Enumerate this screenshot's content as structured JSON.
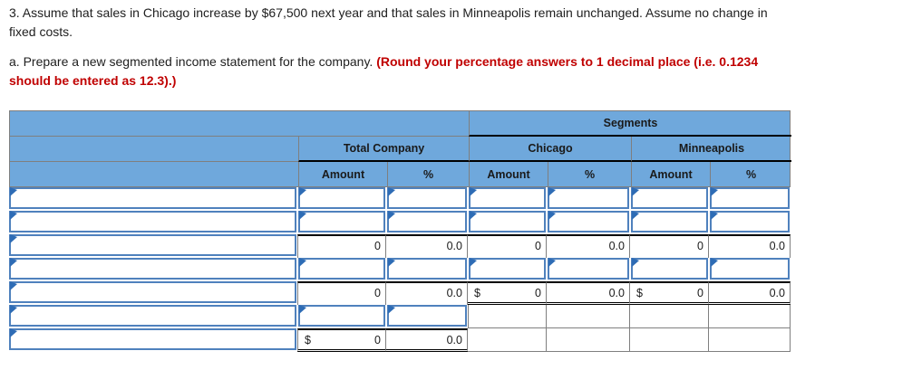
{
  "intro": {
    "line1": "3. Assume that sales in Chicago increase by $67,500 next year and that sales in Minneapolis remain unchanged. Assume no change in",
    "line2": "fixed costs."
  },
  "instruction": {
    "prefix": "a. Prepare a new segmented income statement for the company.",
    "emphasis_line1": "(Round your percentage answers to 1 decimal place (i.e. 0.1234",
    "emphasis_line2": "should be entered as 12.3).)"
  },
  "table": {
    "header": {
      "segments_label": "Segments",
      "total_company_label": "Total Company",
      "chicago_label": "Chicago",
      "minneapolis_label": "Minneapolis",
      "amount_label": "Amount",
      "percent_label": "%"
    },
    "body": {
      "row_3_values": {
        "total_amount": "0",
        "total_pct": "0.0",
        "chicago_amount": "0",
        "chicago_pct": "0.0",
        "minneapolis_amount": "0",
        "minneapolis_pct": "0.0"
      },
      "row_5_values": {
        "total_amount": "0",
        "total_pct": "0.0",
        "chicago_currency": "$",
        "chicago_amount": "0",
        "chicago_pct": "0.0",
        "minneapolis_currency": "$",
        "minneapolis_amount": "0",
        "minneapolis_pct": "0.0"
      },
      "row_7_values": {
        "total_currency": "$",
        "total_amount": "0",
        "total_pct": "0.0"
      }
    }
  },
  "colors": {
    "header_bg": "#6fa8dc",
    "input_border": "#4f81bd",
    "flag_marker": "#2e6cb5",
    "grid_line": "#7f7f7f",
    "accounting_rule": "#000000",
    "instruction_red": "#c00000"
  }
}
